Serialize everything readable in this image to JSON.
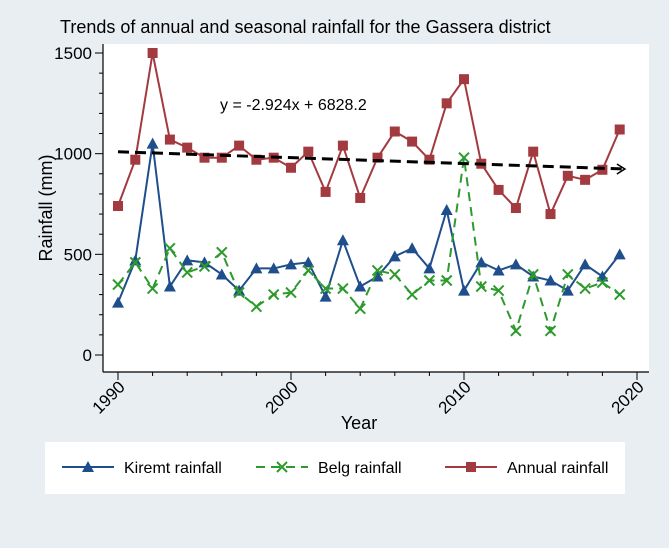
{
  "chart_data": {
    "type": "line",
    "title": "Trends of annual and seasonal rainfall for the Gassera district",
    "xlabel": "Year",
    "ylabel": "Rainfall (mm)",
    "xlim": [
      1990,
      2020
    ],
    "ylim": [
      0,
      1500
    ],
    "xticks": [
      1990,
      2000,
      2010,
      2020
    ],
    "yticks": [
      0,
      500,
      1000,
      1500
    ],
    "trendline_label": "y = -2.924x + 6828.2",
    "trendline": {
      "slope": -2.924,
      "intercept": 6828.2,
      "x_start": 1990,
      "x_end": 2019
    },
    "x": [
      1990,
      1991,
      1992,
      1993,
      1994,
      1995,
      1996,
      1997,
      1998,
      1999,
      2000,
      2001,
      2002,
      2003,
      2004,
      2005,
      2006,
      2007,
      2008,
      2009,
      2010,
      2011,
      2012,
      2013,
      2014,
      2015,
      2016,
      2017,
      2018,
      2019
    ],
    "series": [
      {
        "name": "Kiremt rainfall",
        "color": "#1f4e8c",
        "marker": "triangle",
        "dash": "solid",
        "values": [
          260,
          470,
          1050,
          340,
          470,
          460,
          400,
          320,
          430,
          430,
          450,
          460,
          290,
          570,
          340,
          390,
          490,
          530,
          430,
          720,
          320,
          460,
          420,
          450,
          390,
          370,
          320,
          450,
          390,
          500
        ]
      },
      {
        "name": "Belg rainfall",
        "color": "#2e9a2e",
        "marker": "x",
        "dash": "dashed",
        "values": [
          350,
          460,
          330,
          530,
          410,
          440,
          510,
          310,
          240,
          300,
          310,
          420,
          330,
          330,
          230,
          420,
          400,
          300,
          370,
          370,
          980,
          340,
          320,
          120,
          400,
          120,
          400,
          330,
          360,
          300
        ]
      },
      {
        "name": "Annual rainfall",
        "color": "#a33a3f",
        "marker": "square",
        "dash": "solid",
        "values": [
          740,
          970,
          1500,
          1070,
          1030,
          980,
          980,
          1040,
          970,
          980,
          930,
          1010,
          810,
          1040,
          780,
          980,
          1110,
          1060,
          970,
          1250,
          1370,
          950,
          820,
          730,
          1010,
          700,
          890,
          870,
          920,
          1120
        ]
      }
    ],
    "legend": [
      "Kiremt rainfall",
      "Belg rainfall",
      "Annual rainfall"
    ],
    "legend_position": "bottom"
  }
}
